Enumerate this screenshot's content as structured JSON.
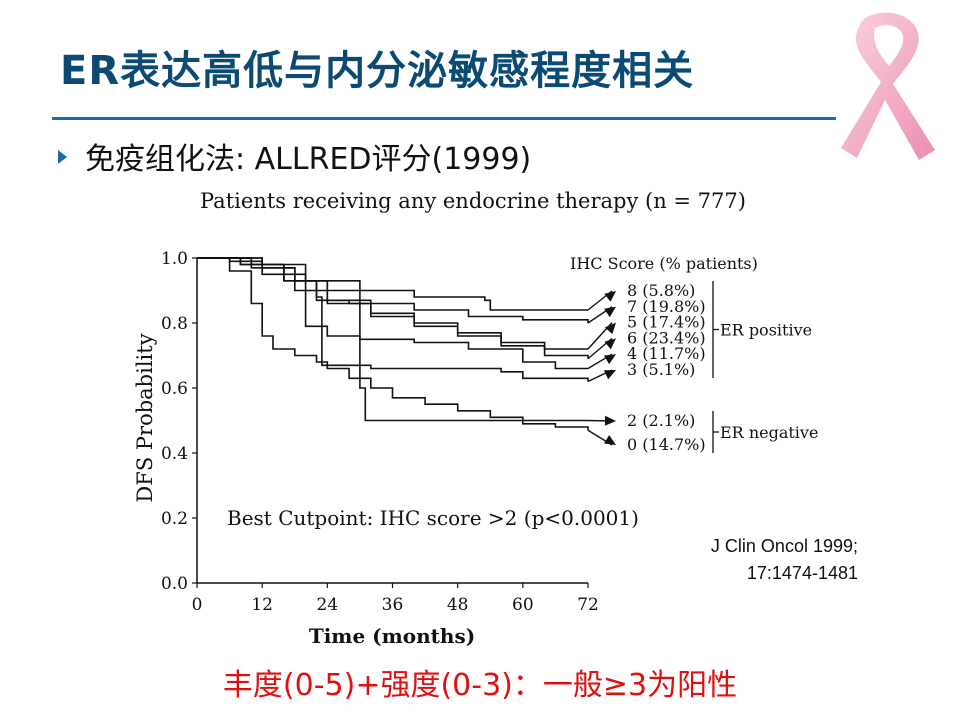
{
  "slide": {
    "title": "ER表达高低与内分泌敏感程度相关",
    "bullet": "免疫组化法: ALLRED评分(1999)",
    "citation_line1": "J Clin Oncol 1999;",
    "citation_line2": "17:1474-1481",
    "bottom_note": "丰度(0-5)+强度(0-3)：一般≥3为阳性",
    "ribbon_icon": "pink-ribbon-icon",
    "colors": {
      "title": "#0b4a72",
      "rule": "#1a6aa8",
      "note": "#e01010",
      "ribbon": "#f2a9c4"
    }
  },
  "chart_data": {
    "type": "line",
    "title": "Patients receiving any endocrine therapy (n = 777)",
    "xlabel": "Time (months)",
    "ylabel": "DFS Probability",
    "xlim": [
      0,
      72
    ],
    "ylim": [
      0,
      1
    ],
    "x_ticks": [
      "0",
      "12",
      "24",
      "36",
      "48",
      "60",
      "72"
    ],
    "y_ticks": [
      "0.0",
      "0.2",
      "0.4",
      "0.6",
      "0.8",
      "1.0"
    ],
    "legend_title": "IHC Score (% patients)",
    "annotation": "Best Cutpoint: IHC score >2 (p<0.0001)",
    "groups": [
      {
        "label": "ER positive",
        "series_labels": [
          "8 (5.8%)",
          "7 (19.8%)",
          "5 (17.4%)",
          "6 (23.4%)",
          "4 (11.7%)",
          "3 (5.1%)"
        ]
      },
      {
        "label": "ER negative",
        "series_labels": [
          "2 (2.1%)",
          "0 (14.7%)"
        ]
      }
    ],
    "series": [
      {
        "name": "8 (5.8%)",
        "end": 0.84,
        "points": [
          [
            0,
            1.0
          ],
          [
            10,
            0.98
          ],
          [
            20,
            0.93
          ],
          [
            30,
            0.9
          ],
          [
            40,
            0.88
          ],
          [
            53,
            0.87
          ],
          [
            54,
            0.84
          ],
          [
            72,
            0.84
          ]
        ]
      },
      {
        "name": "7 (19.8%)",
        "end": 0.8,
        "points": [
          [
            0,
            1.0
          ],
          [
            6,
            0.99
          ],
          [
            12,
            0.95
          ],
          [
            20,
            0.9
          ],
          [
            30,
            0.86
          ],
          [
            40,
            0.84
          ],
          [
            50,
            0.82
          ],
          [
            60,
            0.81
          ],
          [
            72,
            0.8
          ]
        ]
      },
      {
        "name": "5 (17.4%)",
        "end": 0.72,
        "points": [
          [
            0,
            1.0
          ],
          [
            8,
            0.98
          ],
          [
            16,
            0.93
          ],
          [
            24,
            0.86
          ],
          [
            32,
            0.82
          ],
          [
            40,
            0.79
          ],
          [
            48,
            0.76
          ],
          [
            56,
            0.74
          ],
          [
            64,
            0.72
          ],
          [
            72,
            0.72
          ]
        ]
      },
      {
        "name": "6 (23.4%)",
        "end": 0.69,
        "points": [
          [
            0,
            1.0
          ],
          [
            8,
            0.98
          ],
          [
            16,
            0.93
          ],
          [
            24,
            0.87
          ],
          [
            32,
            0.83
          ],
          [
            40,
            0.8
          ],
          [
            48,
            0.77
          ],
          [
            56,
            0.73
          ],
          [
            64,
            0.7
          ],
          [
            72,
            0.69
          ]
        ]
      },
      {
        "name": "4 (11.7%)",
        "end": 0.66,
        "points": [
          [
            0,
            1.0
          ],
          [
            12,
            0.97
          ],
          [
            18,
            0.9
          ],
          [
            20,
            0.79
          ],
          [
            24,
            0.76
          ],
          [
            30,
            0.75
          ],
          [
            40,
            0.74
          ],
          [
            50,
            0.72
          ],
          [
            60,
            0.68
          ],
          [
            66,
            0.66
          ],
          [
            72,
            0.66
          ]
        ]
      },
      {
        "name": "3 (5.1%)",
        "end": 0.62,
        "points": [
          [
            0,
            1.0
          ],
          [
            10,
            0.97
          ],
          [
            18,
            0.93
          ],
          [
            22,
            0.88
          ],
          [
            23,
            0.67
          ],
          [
            32,
            0.66
          ],
          [
            44,
            0.66
          ],
          [
            50,
            0.66
          ],
          [
            56,
            0.65
          ],
          [
            60,
            0.63
          ],
          [
            72,
            0.62
          ]
        ]
      },
      {
        "name": "2 (2.1%)",
        "end": 0.5,
        "points": [
          [
            0,
            1.0
          ],
          [
            12,
            0.97
          ],
          [
            18,
            0.93
          ],
          [
            22,
            0.87
          ],
          [
            28,
            0.86
          ],
          [
            30,
            0.6
          ],
          [
            31,
            0.5
          ],
          [
            48,
            0.5
          ],
          [
            72,
            0.5
          ]
        ]
      },
      {
        "name": "0 (14.7%)",
        "end": 0.47,
        "points": [
          [
            0,
            1.0
          ],
          [
            6,
            0.96
          ],
          [
            10,
            0.86
          ],
          [
            12,
            0.76
          ],
          [
            14,
            0.72
          ],
          [
            18,
            0.7
          ],
          [
            22,
            0.68
          ],
          [
            24,
            0.66
          ],
          [
            28,
            0.63
          ],
          [
            32,
            0.6
          ],
          [
            36,
            0.57
          ],
          [
            42,
            0.55
          ],
          [
            48,
            0.53
          ],
          [
            54,
            0.51
          ],
          [
            60,
            0.49
          ],
          [
            66,
            0.48
          ],
          [
            72,
            0.47
          ]
        ]
      }
    ]
  }
}
